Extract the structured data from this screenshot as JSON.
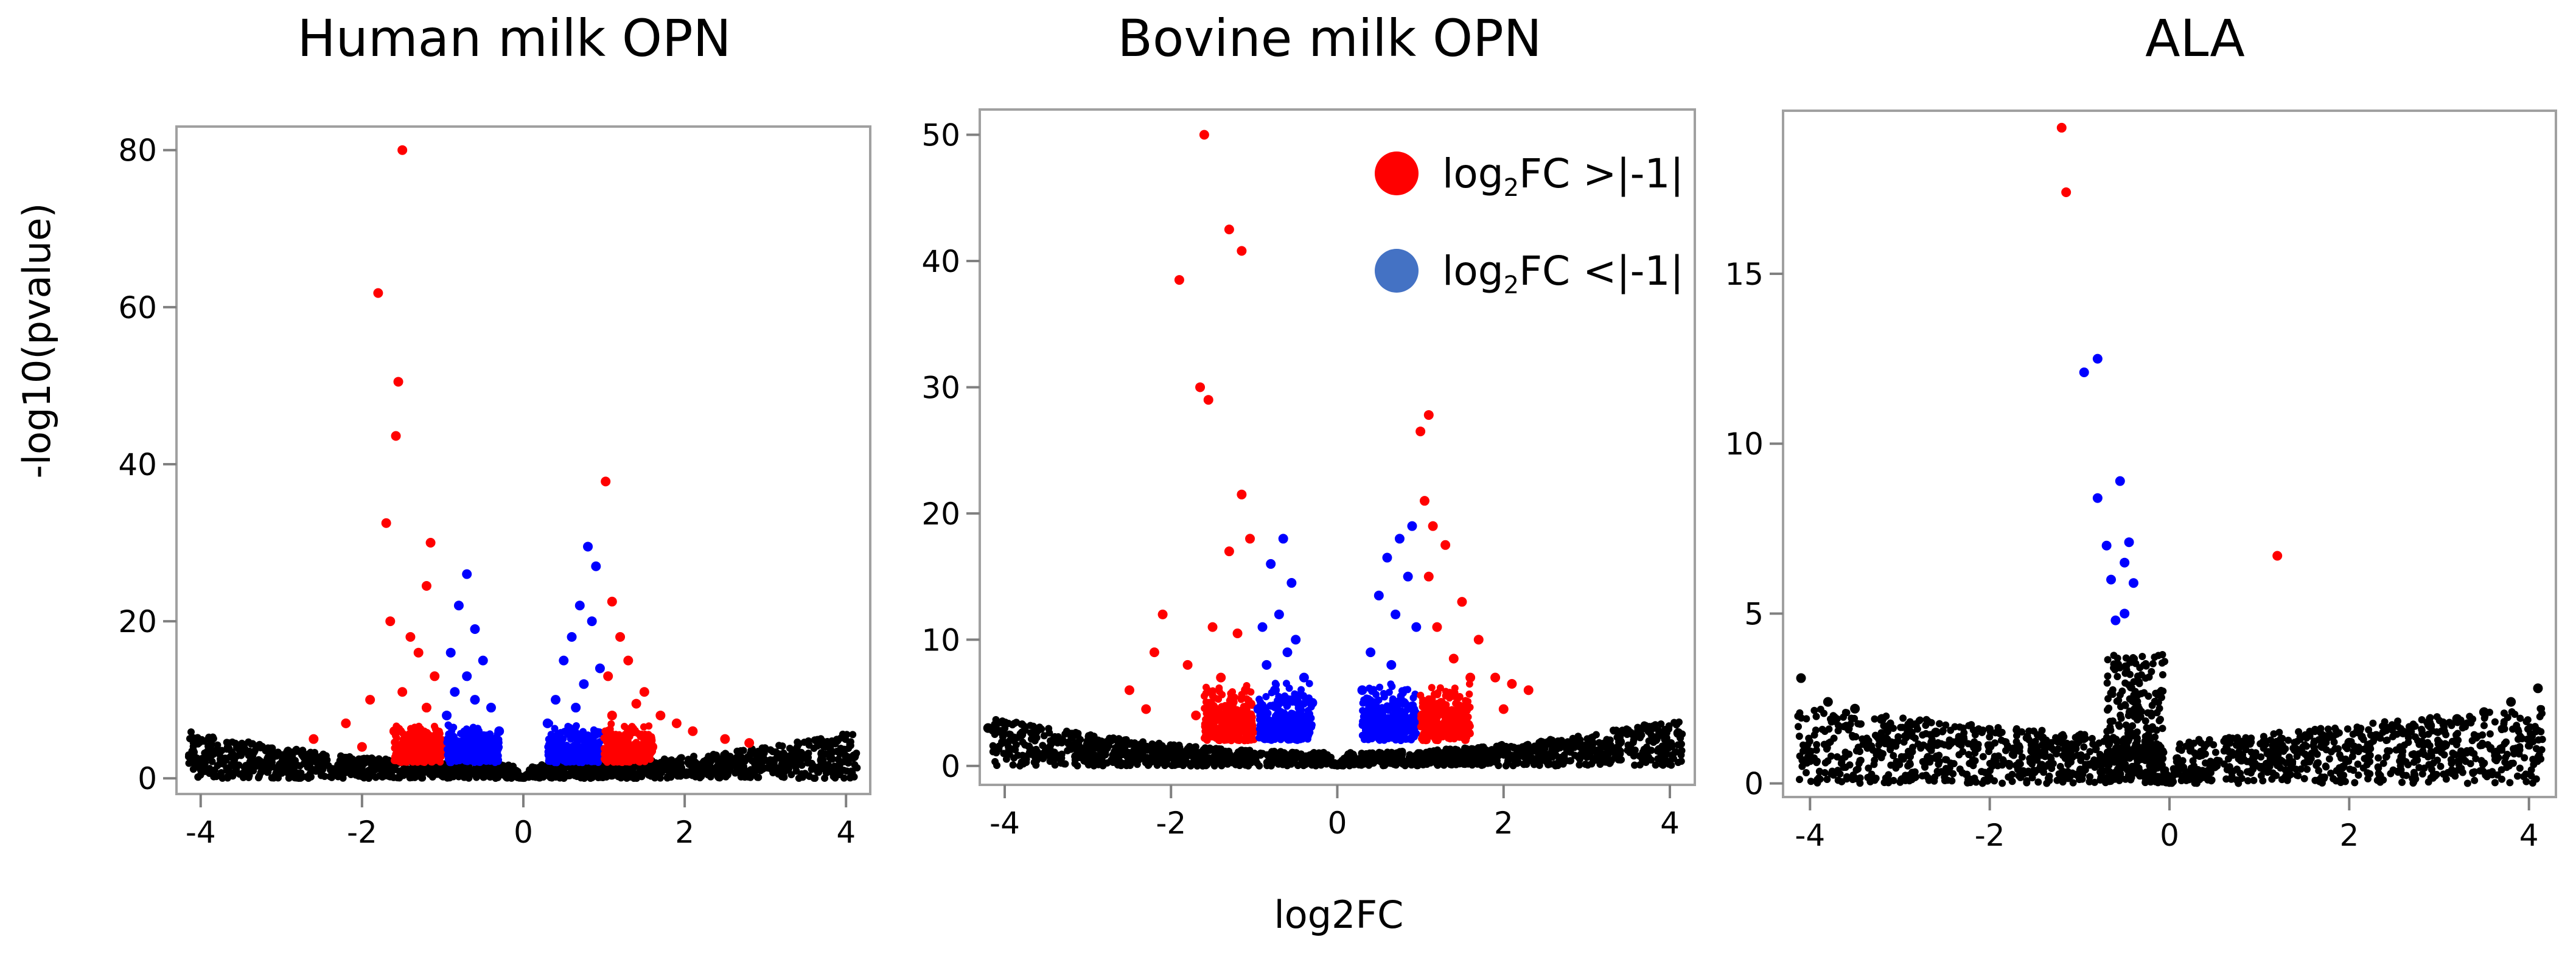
{
  "figure": {
    "shared_xlabel": "log2FC",
    "shared_ylabel": "-log10(pvalue)"
  },
  "legend": {
    "items": [
      {
        "prefix": "log",
        "sub": "2",
        "suffix": "FC >|-1|",
        "color": "#ff0000"
      },
      {
        "prefix": "log",
        "sub": "2",
        "suffix": "FC <|-1|",
        "color": "#4472c4"
      }
    ]
  },
  "colors": {
    "significant": "#ff0000",
    "moderate": "#0000ff",
    "background": "#000000"
  },
  "chart_data": [
    {
      "type": "scatter",
      "title": "Human milk OPN",
      "xlim": [
        -4.3,
        4.3
      ],
      "ylim": [
        -2,
        83
      ],
      "xticks": [
        -4,
        -2,
        0,
        2,
        4
      ],
      "yticks": [
        0,
        20,
        40,
        60,
        80
      ],
      "grid": false,
      "series": [
        {
          "color": "#ff0000",
          "points": [
            [
              -1.5,
              80
            ],
            [
              -1.8,
              61.8
            ],
            [
              -1.55,
              50.5
            ],
            [
              -1.58,
              43.6
            ],
            [
              -1.7,
              32.5
            ],
            [
              -1.15,
              30
            ],
            [
              -1.2,
              24.5
            ],
            [
              -1.65,
              20
            ],
            [
              -1.4,
              18
            ],
            [
              -1.3,
              16
            ],
            [
              -1.1,
              13
            ],
            [
              -1.5,
              11
            ],
            [
              -1.9,
              10
            ],
            [
              -1.2,
              9
            ],
            [
              -2.2,
              7
            ],
            [
              -1.6,
              6
            ],
            [
              -2.6,
              5
            ],
            [
              -1.05,
              5
            ],
            [
              -2.0,
              4
            ],
            [
              -1.3,
              3.5
            ],
            [
              1.02,
              37.8
            ],
            [
              1.1,
              22.5
            ],
            [
              1.2,
              18
            ],
            [
              1.3,
              15
            ],
            [
              1.05,
              13
            ],
            [
              1.5,
              11
            ],
            [
              1.4,
              9.5
            ],
            [
              1.1,
              8
            ],
            [
              1.7,
              8
            ],
            [
              1.9,
              7
            ],
            [
              2.1,
              6
            ],
            [
              1.25,
              5
            ],
            [
              2.5,
              5
            ],
            [
              2.8,
              4.5
            ],
            [
              1.6,
              4
            ],
            [
              1.15,
              3.5
            ]
          ]
        },
        {
          "color": "#0000ff",
          "points": [
            [
              -0.7,
              26
            ],
            [
              -0.8,
              22
            ],
            [
              -0.6,
              19
            ],
            [
              -0.9,
              16
            ],
            [
              -0.5,
              15
            ],
            [
              -0.7,
              13
            ],
            [
              -0.85,
              11
            ],
            [
              -0.6,
              10
            ],
            [
              -0.4,
              9
            ],
            [
              -0.95,
              8
            ],
            [
              -0.3,
              6
            ],
            [
              -0.5,
              5
            ],
            [
              -0.75,
              4
            ],
            [
              0.8,
              29.5
            ],
            [
              0.9,
              27
            ],
            [
              0.7,
              22
            ],
            [
              0.85,
              20
            ],
            [
              0.6,
              18
            ],
            [
              0.5,
              15
            ],
            [
              0.95,
              14
            ],
            [
              0.75,
              12
            ],
            [
              0.4,
              10
            ],
            [
              0.65,
              9
            ],
            [
              0.3,
              7
            ],
            [
              0.55,
              6
            ],
            [
              0.85,
              5
            ],
            [
              0.45,
              4
            ]
          ]
        },
        {
          "color": "#000000",
          "points": [
            [
              -4.1,
              3
            ],
            [
              -3.7,
              2.4
            ],
            [
              -3.3,
              2
            ],
            [
              -2.9,
              1.6
            ],
            [
              -2.5,
              1.2
            ],
            [
              -2.1,
              1
            ],
            [
              -1.7,
              0.8
            ],
            [
              -1.3,
              0.6
            ],
            [
              -0.9,
              0.5
            ],
            [
              -0.5,
              0.4
            ],
            [
              -0.2,
              0.2
            ],
            [
              0.2,
              0.2
            ],
            [
              0.5,
              0.4
            ],
            [
              0.9,
              0.5
            ],
            [
              1.3,
              0.6
            ],
            [
              1.7,
              0.8
            ],
            [
              2.1,
              1
            ],
            [
              2.5,
              1.2
            ],
            [
              2.9,
              1.5
            ],
            [
              3.3,
              1.9
            ],
            [
              3.7,
              2.3
            ],
            [
              4.1,
              2.8
            ]
          ]
        }
      ]
    },
    {
      "type": "scatter",
      "title": "Bovine milk OPN",
      "xlim": [
        -4.3,
        4.3
      ],
      "ylim": [
        -1.5,
        52
      ],
      "xticks": [
        -4,
        -2,
        0,
        2,
        4
      ],
      "yticks": [
        0,
        10,
        20,
        30,
        40,
        50
      ],
      "grid": false,
      "series": [
        {
          "color": "#ff0000",
          "points": [
            [
              -1.6,
              50
            ],
            [
              -1.3,
              42.5
            ],
            [
              -1.15,
              40.8
            ],
            [
              -1.9,
              38.5
            ],
            [
              -1.65,
              30
            ],
            [
              -1.55,
              29
            ],
            [
              -1.15,
              21.5
            ],
            [
              -1.05,
              18
            ],
            [
              -1.3,
              17
            ],
            [
              -2.1,
              12
            ],
            [
              -1.5,
              11
            ],
            [
              -1.2,
              10.5
            ],
            [
              -2.2,
              9
            ],
            [
              -1.8,
              8
            ],
            [
              -1.4,
              7
            ],
            [
              -2.5,
              6
            ],
            [
              -1.1,
              6
            ],
            [
              -2.3,
              4.5
            ],
            [
              -1.7,
              4
            ],
            [
              -1.35,
              3
            ],
            [
              1.1,
              27.8
            ],
            [
              1.0,
              26.5
            ],
            [
              1.05,
              21
            ],
            [
              1.15,
              19
            ],
            [
              1.3,
              17.5
            ],
            [
              1.1,
              15
            ],
            [
              1.5,
              13
            ],
            [
              1.2,
              11
            ],
            [
              1.7,
              10
            ],
            [
              1.4,
              8.5
            ],
            [
              1.6,
              7
            ],
            [
              1.9,
              7
            ],
            [
              2.1,
              6.5
            ],
            [
              2.3,
              6
            ],
            [
              1.25,
              5
            ],
            [
              2.0,
              4.5
            ],
            [
              1.5,
              3.5
            ]
          ]
        },
        {
          "color": "#0000ff",
          "points": [
            [
              -0.65,
              18
            ],
            [
              -0.8,
              16
            ],
            [
              -0.55,
              14.5
            ],
            [
              -0.7,
              12
            ],
            [
              -0.9,
              11
            ],
            [
              -0.5,
              10
            ],
            [
              -0.6,
              9
            ],
            [
              -0.85,
              8
            ],
            [
              -0.4,
              7
            ],
            [
              -0.75,
              6
            ],
            [
              -0.3,
              5
            ],
            [
              -0.95,
              4.5
            ],
            [
              -0.55,
              3.8
            ],
            [
              0.9,
              19
            ],
            [
              0.75,
              18
            ],
            [
              0.6,
              16.5
            ],
            [
              0.85,
              15
            ],
            [
              0.5,
              13.5
            ],
            [
              0.7,
              12
            ],
            [
              0.95,
              11
            ],
            [
              0.4,
              9
            ],
            [
              0.65,
              8
            ],
            [
              0.3,
              6
            ],
            [
              0.8,
              5
            ],
            [
              0.45,
              4
            ]
          ]
        },
        {
          "color": "#000000",
          "points": [
            [
              -4.2,
              3
            ],
            [
              -3.8,
              2.5
            ],
            [
              -3.4,
              2.1
            ],
            [
              -3.0,
              1.7
            ],
            [
              -2.6,
              1.3
            ],
            [
              -2.2,
              1.1
            ],
            [
              -1.8,
              0.9
            ],
            [
              -1.4,
              0.7
            ],
            [
              -1.0,
              0.5
            ],
            [
              -0.6,
              0.4
            ],
            [
              -0.2,
              0.2
            ],
            [
              0.2,
              0.2
            ],
            [
              0.6,
              0.4
            ],
            [
              1.0,
              0.5
            ],
            [
              1.4,
              0.7
            ],
            [
              1.8,
              0.9
            ],
            [
              2.2,
              1.1
            ],
            [
              2.6,
              1.3
            ],
            [
              3.0,
              1.6
            ],
            [
              3.4,
              1.9
            ],
            [
              3.8,
              2.2
            ],
            [
              4.1,
              2.6
            ]
          ]
        }
      ]
    },
    {
      "type": "scatter",
      "title": "ALA",
      "xlim": [
        -4.3,
        4.3
      ],
      "ylim": [
        -0.4,
        19.8
      ],
      "xticks": [
        -4,
        -2,
        0,
        2,
        4
      ],
      "yticks": [
        0,
        5,
        10,
        15
      ],
      "grid": false,
      "series": [
        {
          "color": "#ff0000",
          "points": [
            [
              -1.2,
              19.3
            ],
            [
              -1.15,
              17.4
            ],
            [
              1.2,
              6.7
            ]
          ]
        },
        {
          "color": "#0000ff",
          "points": [
            [
              -0.8,
              12.5
            ],
            [
              -0.95,
              12.1
            ],
            [
              -0.55,
              8.9
            ],
            [
              -0.8,
              8.4
            ],
            [
              -0.45,
              7.1
            ],
            [
              -0.7,
              7.0
            ],
            [
              -0.5,
              6.5
            ],
            [
              -0.65,
              6.0
            ],
            [
              -0.4,
              5.9
            ],
            [
              -0.5,
              5.0
            ],
            [
              -0.6,
              4.8
            ]
          ]
        },
        {
          "color": "#000000",
          "points": [
            [
              -4.1,
              3.1
            ],
            [
              -3.8,
              2.4
            ],
            [
              -3.5,
              2.2
            ],
            [
              -3.2,
              1.9
            ],
            [
              -2.9,
              1.7
            ],
            [
              -2.6,
              1.5
            ],
            [
              -2.3,
              1.3
            ],
            [
              -2.0,
              1.1
            ],
            [
              -1.7,
              1.0
            ],
            [
              -1.4,
              0.9
            ],
            [
              -1.1,
              0.8
            ],
            [
              -0.8,
              0.6
            ],
            [
              -0.5,
              0.5
            ],
            [
              -0.2,
              0.3
            ],
            [
              0.2,
              0.3
            ],
            [
              0.5,
              0.5
            ],
            [
              0.8,
              0.7
            ],
            [
              1.1,
              0.9
            ],
            [
              1.4,
              1.0
            ],
            [
              1.7,
              1.1
            ],
            [
              2.0,
              1.2
            ],
            [
              2.3,
              1.4
            ],
            [
              2.6,
              1.5
            ],
            [
              2.9,
              1.7
            ],
            [
              3.2,
              1.9
            ],
            [
              3.5,
              2.1
            ],
            [
              3.8,
              2.4
            ],
            [
              4.1,
              2.8
            ]
          ]
        }
      ]
    }
  ]
}
